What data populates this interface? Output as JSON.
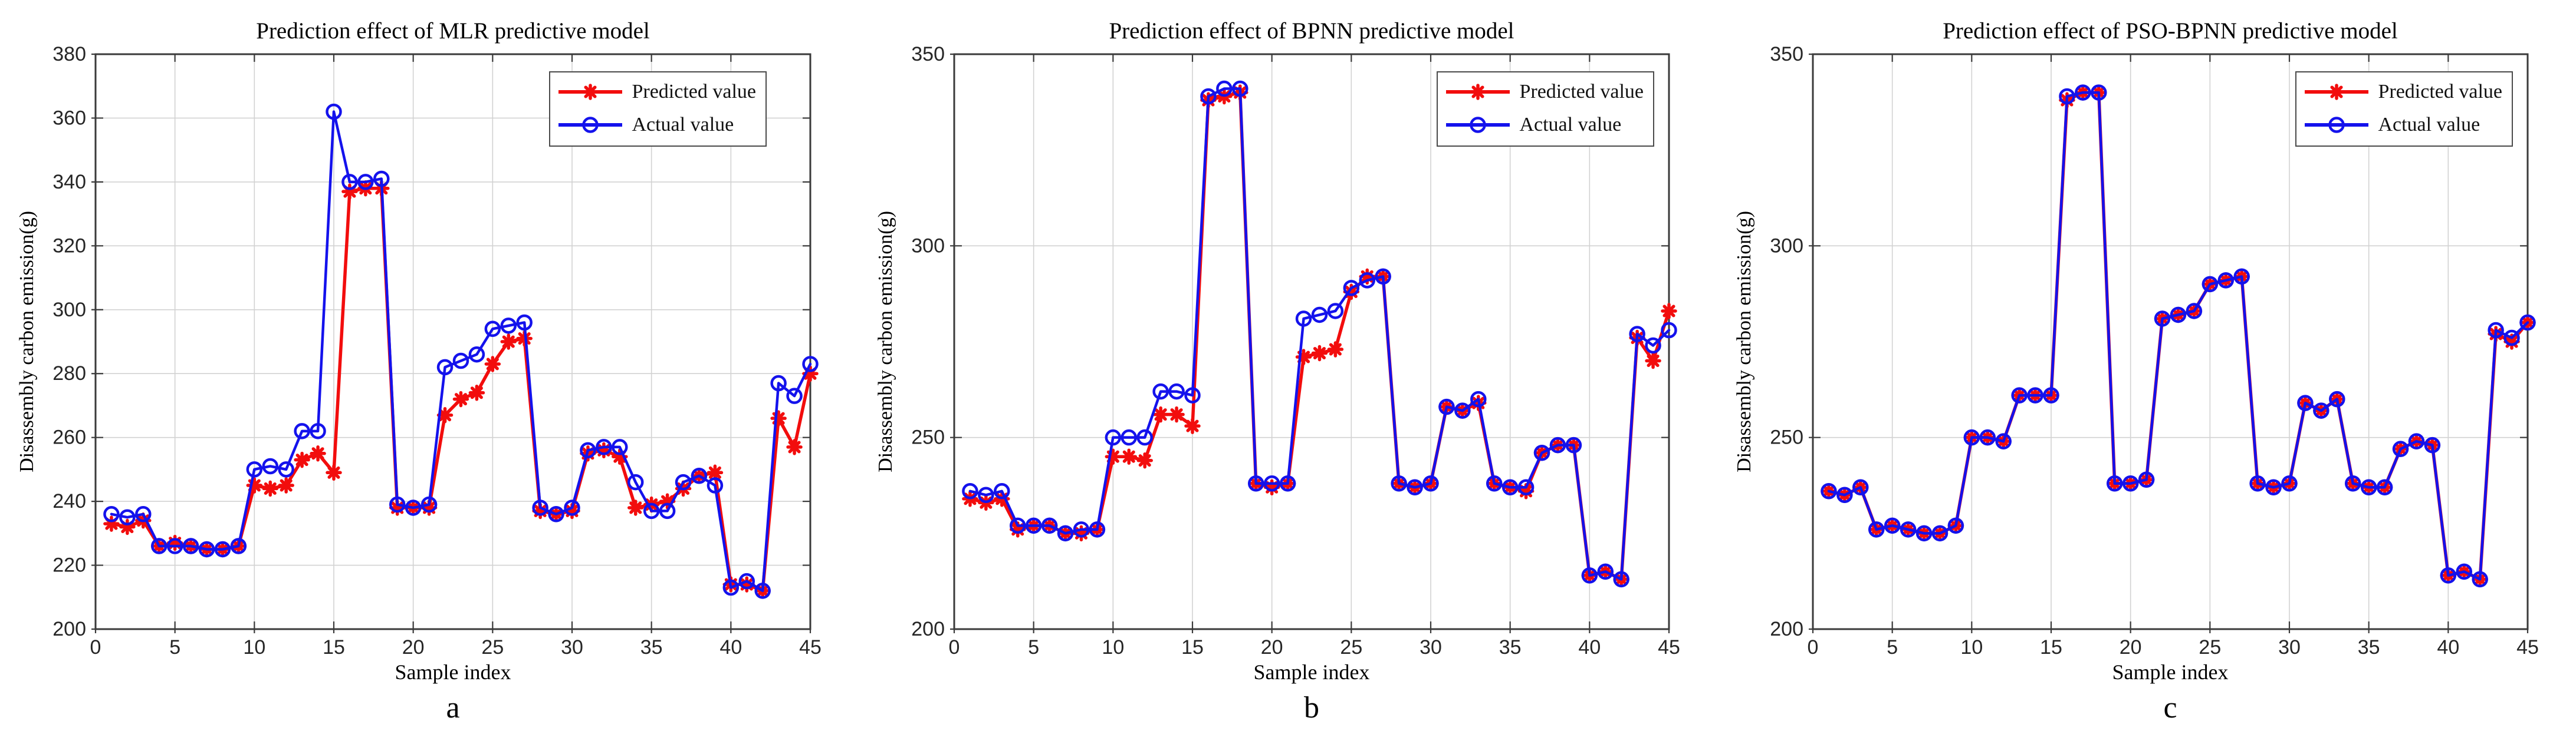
{
  "figure": {
    "background": "#ffffff",
    "panel_letters": [
      "a",
      "b",
      "c"
    ]
  },
  "chart_data": [
    {
      "type": "line",
      "title": "Prediction effect of MLR predictive model",
      "xlabel": "Sample index",
      "ylabel": "Disassembly carbon emission(g)",
      "panel_label": "a",
      "xlim": [
        0,
        45
      ],
      "ylim": [
        200,
        380
      ],
      "x_ticks": [
        0,
        5,
        10,
        15,
        20,
        25,
        30,
        35,
        40,
        45
      ],
      "y_ticks": [
        200,
        220,
        240,
        260,
        280,
        300,
        320,
        340,
        360,
        380
      ],
      "grid": true,
      "legend_position": "top-right",
      "x": [
        1,
        2,
        3,
        4,
        5,
        6,
        7,
        8,
        9,
        10,
        11,
        12,
        13,
        14,
        15,
        16,
        17,
        18,
        19,
        20,
        21,
        22,
        23,
        24,
        25,
        26,
        27,
        28,
        29,
        30,
        31,
        32,
        33,
        34,
        35,
        36,
        37,
        38,
        39,
        40,
        41,
        42,
        43,
        44,
        45
      ],
      "series": [
        {
          "name": "Predicted value",
          "color": "#f20d0d",
          "marker": "asterisk",
          "values": [
            233,
            232,
            234,
            226,
            227,
            226,
            225,
            225,
            226,
            245,
            244,
            245,
            253,
            255,
            249,
            337,
            338,
            338,
            238,
            238,
            238,
            267,
            272,
            274,
            283,
            290,
            291,
            237,
            236,
            237,
            255,
            256,
            254,
            238,
            239,
            240,
            244,
            248,
            249,
            214,
            214,
            212,
            266,
            257,
            280
          ]
        },
        {
          "name": "Actual value",
          "color": "#1412ec",
          "marker": "open-circle",
          "values": [
            236,
            235,
            236,
            226,
            226,
            226,
            225,
            225,
            226,
            250,
            251,
            250,
            262,
            262,
            362,
            340,
            340,
            341,
            239,
            238,
            239,
            282,
            284,
            286,
            294,
            295,
            296,
            238,
            236,
            238,
            256,
            257,
            257,
            246,
            237,
            237,
            246,
            248,
            245,
            213,
            215,
            212,
            277,
            273,
            283
          ]
        }
      ]
    },
    {
      "type": "line",
      "title": "Prediction effect of BPNN predictive model",
      "xlabel": "Sample index",
      "ylabel": "Disassembly carbon emission(g)",
      "panel_label": "b",
      "xlim": [
        0,
        45
      ],
      "ylim": [
        200,
        350
      ],
      "x_ticks": [
        0,
        5,
        10,
        15,
        20,
        25,
        30,
        35,
        40,
        45
      ],
      "y_ticks": [
        200,
        250,
        300,
        350
      ],
      "grid": true,
      "legend_position": "top-right",
      "x": [
        1,
        2,
        3,
        4,
        5,
        6,
        7,
        8,
        9,
        10,
        11,
        12,
        13,
        14,
        15,
        16,
        17,
        18,
        19,
        20,
        21,
        22,
        23,
        24,
        25,
        26,
        27,
        28,
        29,
        30,
        31,
        32,
        33,
        34,
        35,
        36,
        37,
        38,
        39,
        40,
        41,
        42,
        43,
        44,
        45
      ],
      "series": [
        {
          "name": "Predicted value",
          "color": "#f20d0d",
          "marker": "asterisk",
          "values": [
            234,
            233,
            234,
            226,
            227,
            227,
            225,
            225,
            226,
            245,
            245,
            244,
            256,
            256,
            253,
            338,
            339,
            340,
            238,
            237,
            238,
            271,
            272,
            273,
            288,
            292,
            292,
            238,
            237,
            238,
            258,
            257,
            259,
            238,
            237,
            236,
            246,
            248,
            248,
            214,
            215,
            213,
            276,
            270,
            283
          ]
        },
        {
          "name": "Actual value",
          "color": "#1412ec",
          "marker": "open-circle",
          "values": [
            236,
            235,
            236,
            227,
            227,
            227,
            225,
            226,
            226,
            250,
            250,
            250,
            262,
            262,
            261,
            339,
            341,
            341,
            238,
            238,
            238,
            281,
            282,
            283,
            289,
            291,
            292,
            238,
            237,
            238,
            258,
            257,
            260,
            238,
            237,
            237,
            246,
            248,
            248,
            214,
            215,
            213,
            277,
            274,
            278
          ]
        }
      ]
    },
    {
      "type": "line",
      "title": "Prediction effect of PSO-BPNN predictive model",
      "xlabel": "Sample index",
      "ylabel": "Disassembly carbon emission(g)",
      "panel_label": "c",
      "xlim": [
        0,
        45
      ],
      "ylim": [
        200,
        350
      ],
      "x_ticks": [
        0,
        5,
        10,
        15,
        20,
        25,
        30,
        35,
        40,
        45
      ],
      "y_ticks": [
        200,
        250,
        300,
        350
      ],
      "grid": true,
      "legend_position": "top-right",
      "x": [
        1,
        2,
        3,
        4,
        5,
        6,
        7,
        8,
        9,
        10,
        11,
        12,
        13,
        14,
        15,
        16,
        17,
        18,
        19,
        20,
        21,
        22,
        23,
        24,
        25,
        26,
        27,
        28,
        29,
        30,
        31,
        32,
        33,
        34,
        35,
        36,
        37,
        38,
        39,
        40,
        41,
        42,
        43,
        44,
        45
      ],
      "series": [
        {
          "name": "Predicted value",
          "color": "#f20d0d",
          "marker": "asterisk",
          "values": [
            236,
            235,
            237,
            226,
            227,
            226,
            225,
            225,
            227,
            250,
            250,
            249,
            261,
            261,
            261,
            338,
            340,
            340,
            238,
            238,
            239,
            281,
            282,
            283,
            290,
            291,
            292,
            238,
            237,
            238,
            259,
            257,
            260,
            238,
            237,
            237,
            247,
            249,
            248,
            214,
            215,
            213,
            277,
            275,
            280
          ]
        },
        {
          "name": "Actual value",
          "color": "#1412ec",
          "marker": "open-circle",
          "values": [
            236,
            235,
            237,
            226,
            227,
            226,
            225,
            225,
            227,
            250,
            250,
            249,
            261,
            261,
            261,
            339,
            340,
            340,
            238,
            238,
            239,
            281,
            282,
            283,
            290,
            291,
            292,
            238,
            237,
            238,
            259,
            257,
            260,
            238,
            237,
            237,
            247,
            249,
            248,
            214,
            215,
            213,
            278,
            276,
            280
          ]
        }
      ]
    }
  ]
}
